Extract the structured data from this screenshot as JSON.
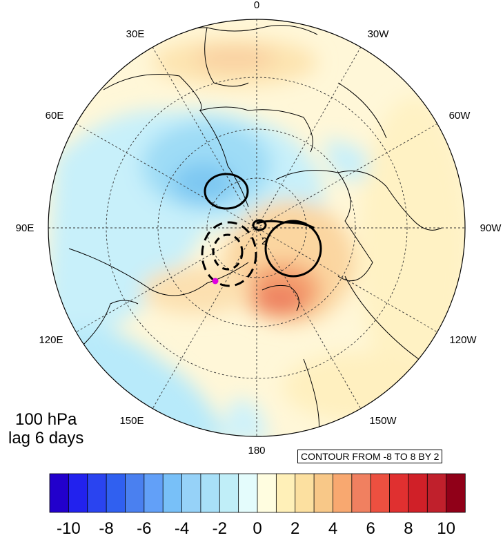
{
  "map": {
    "projection": "north polar stereographic",
    "longitude_labels": {
      "top": "0",
      "upper_left": "30E",
      "upper_right": "30W",
      "left_upper": "60E",
      "right_upper": "60W",
      "left": "90E",
      "right": "90W",
      "left_lower": "120E",
      "right_lower": "120W",
      "lower_left": "150E",
      "lower_right": "150W",
      "bottom": "180"
    },
    "contour_line_label": "2",
    "marker_color": "#e000e0"
  },
  "level_label": {
    "line1": "100 hPa",
    "line2": "lag 6 days"
  },
  "contour_info": "CONTOUR FROM -8 TO 8 BY 2",
  "colorbar": {
    "colors": [
      "#2200cc",
      "#2222ee",
      "#2a44f0",
      "#3060f0",
      "#4a80f0",
      "#62a0f8",
      "#78c0f8",
      "#96d2f8",
      "#a8e0f8",
      "#c0eef8",
      "#e4fcfc",
      "#fffde0",
      "#fff0b8",
      "#fce0a0",
      "#f8c888",
      "#f8a870",
      "#f08060",
      "#ec5040",
      "#e03030",
      "#d02028",
      "#c0202c",
      "#900018"
    ],
    "tick_labels": [
      "-10",
      "-8",
      "-6",
      "-4",
      "-2",
      "0",
      "2",
      "4",
      "6",
      "8",
      "10"
    ]
  }
}
